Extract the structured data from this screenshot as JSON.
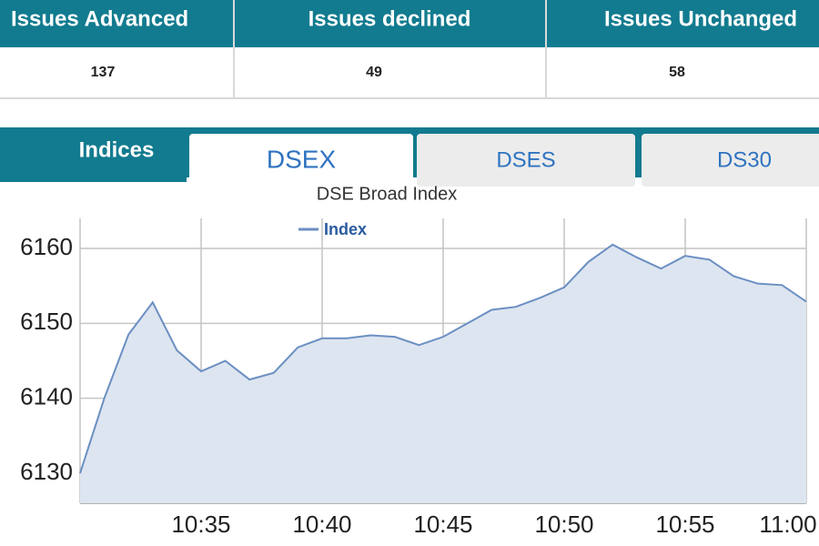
{
  "table": {
    "headers": [
      "Issues Advanced",
      "Issues declined",
      "Issues Unchanged"
    ],
    "rows": [
      [
        "137",
        "49",
        "58"
      ]
    ]
  },
  "tabs": {
    "label": "Indices",
    "items": [
      "DSEX",
      "DSES",
      "DS30"
    ],
    "active": 0
  },
  "chart_data": {
    "type": "line",
    "title": "DSE Broad Index",
    "x": [
      "10:30",
      "10:31",
      "10:32",
      "10:33",
      "10:34",
      "10:35",
      "10:36",
      "10:37",
      "10:38",
      "10:39",
      "10:40",
      "10:41",
      "10:42",
      "10:43",
      "10:44",
      "10:45",
      "10:46",
      "10:47",
      "10:48",
      "10:49",
      "10:50",
      "10:51",
      "10:52",
      "10:53",
      "10:54",
      "10:55",
      "10:56",
      "10:57",
      "10:58",
      "10:59",
      "11:00"
    ],
    "series": [
      {
        "name": "Index",
        "color": "#6b8fc2",
        "values": [
          6130,
          6140,
          6148.5,
          6152.8,
          6146.4,
          6143.6,
          6145,
          6142.5,
          6143.4,
          6146.8,
          6148,
          6148,
          6148.4,
          6148.2,
          6147.1,
          6148.2,
          6150,
          6151.8,
          6152.2,
          6153.4,
          6154.8,
          6158.2,
          6160.5,
          6158.8,
          6157.3,
          6159,
          6158.5,
          6156.3,
          6155.3,
          6155.1,
          6152.9
        ]
      }
    ],
    "area": true,
    "area_color": "#dde5f0",
    "xlim": [
      "10:30",
      "11:00"
    ],
    "xticks": [
      "10:35",
      "10:40",
      "10:45",
      "10:50",
      "10:55",
      "11:00"
    ],
    "ylim": [
      6126,
      6164
    ],
    "yticks": [
      6130,
      6140,
      6150,
      6160
    ],
    "grid": true
  }
}
